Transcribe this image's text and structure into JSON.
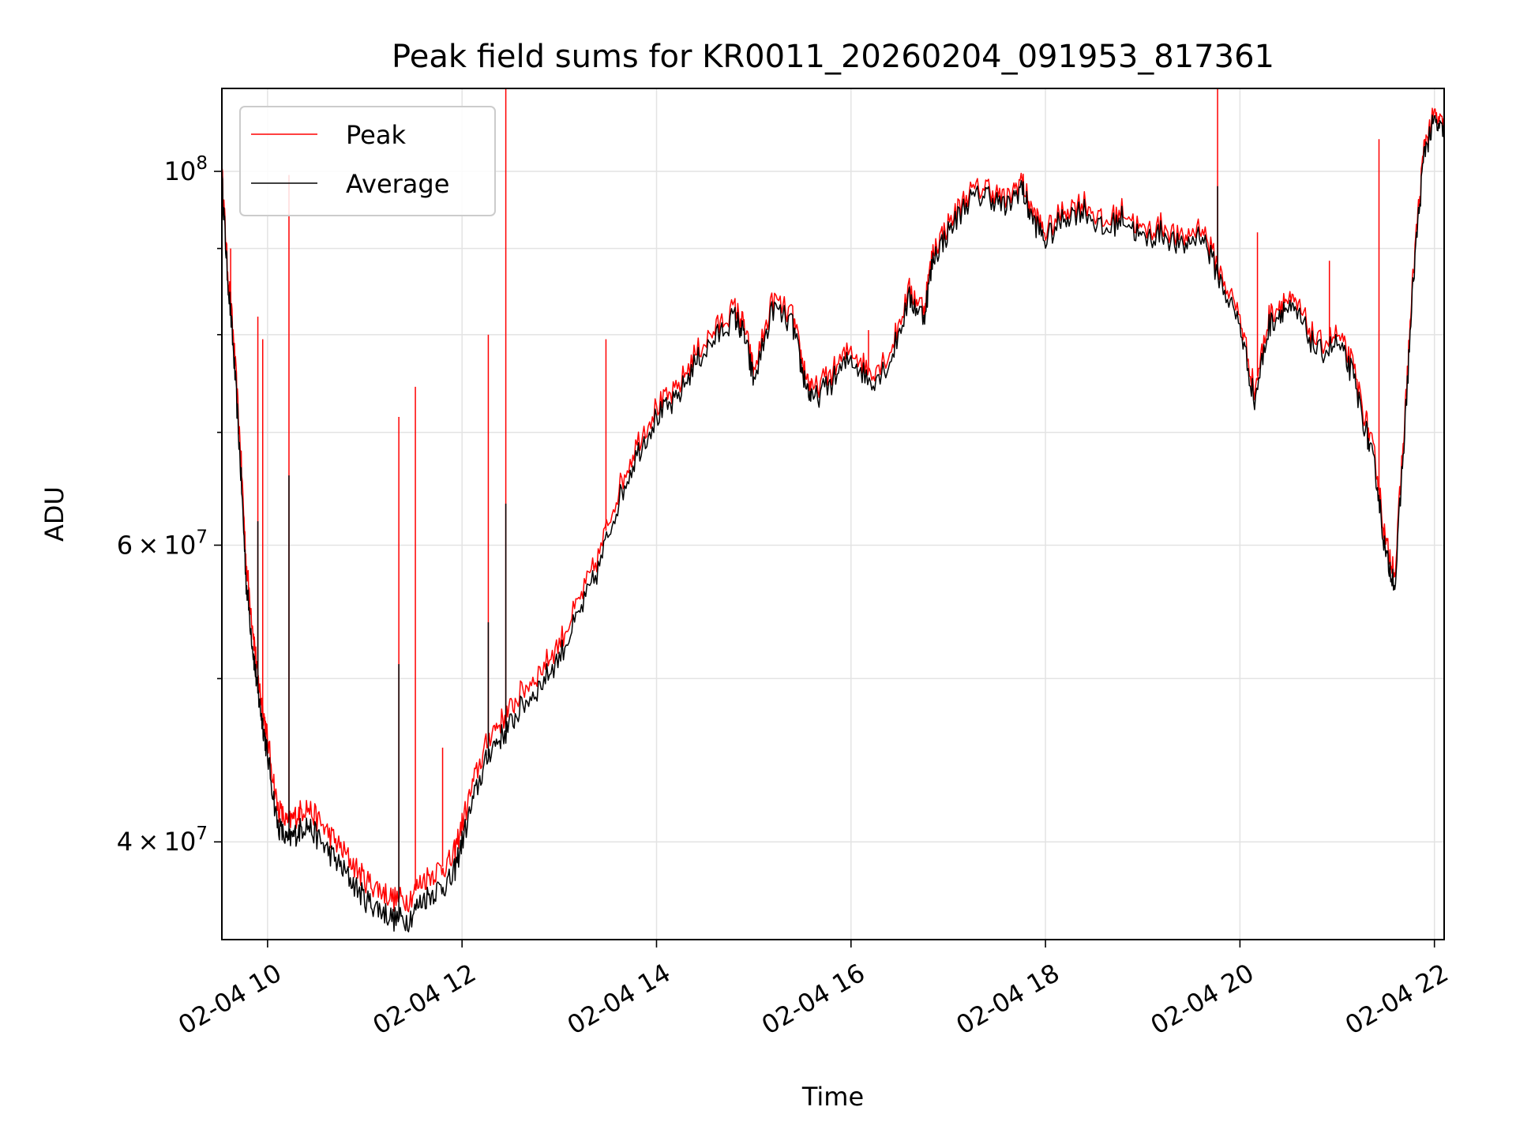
{
  "chart_data": {
    "type": "line",
    "title": "Peak field sums for KR0011_20260204_091953_817361",
    "xlabel": "Time",
    "ylabel": "ADU",
    "x_unit": "hours (time of day on 02-04)",
    "xlim": [
      9.53,
      22.1
    ],
    "ylim": [
      35000000,
      112000000
    ],
    "yscale": "log",
    "grid": true,
    "legend_position": "upper-left",
    "colors": {
      "Peak": "#ff0000",
      "Average": "#000000"
    },
    "x_ticks": [
      {
        "value": 10,
        "label": "02-04 10"
      },
      {
        "value": 12,
        "label": "02-04 12"
      },
      {
        "value": 14,
        "label": "02-04 14"
      },
      {
        "value": 16,
        "label": "02-04 16"
      },
      {
        "value": 18,
        "label": "02-04 18"
      },
      {
        "value": 20,
        "label": "02-04 20"
      },
      {
        "value": 22,
        "label": "02-04 22"
      }
    ],
    "y_ticks_major": [
      {
        "value": 40000000,
        "base": "4",
        "exp": "7"
      },
      {
        "value": 60000000,
        "base": "6",
        "exp": "7"
      },
      {
        "value": 100000000,
        "base": "10",
        "exp": "8"
      }
    ],
    "y_gridlines_minor": [
      50000000,
      70000000,
      80000000,
      90000000
    ],
    "series": [
      {
        "name": "Average",
        "x": [
          9.53,
          9.58,
          9.65,
          9.72,
          9.78,
          9.85,
          9.9,
          9.95,
          10.0,
          10.1,
          10.2,
          10.3,
          10.4,
          10.55,
          10.7,
          10.85,
          11.0,
          11.15,
          11.3,
          11.45,
          11.6,
          11.75,
          11.9,
          12.0,
          12.15,
          12.3,
          12.45,
          12.6,
          12.8,
          13.0,
          13.2,
          13.4,
          13.6,
          13.8,
          14.0,
          14.2,
          14.4,
          14.6,
          14.8,
          14.9,
          15.0,
          15.2,
          15.4,
          15.5,
          15.6,
          15.8,
          16.0,
          16.2,
          16.4,
          16.6,
          16.75,
          16.85,
          17.0,
          17.2,
          17.4,
          17.6,
          17.75,
          17.85,
          18.0,
          18.2,
          18.4,
          18.6,
          18.8,
          19.0,
          19.2,
          19.4,
          19.6,
          19.8,
          20.0,
          20.15,
          20.3,
          20.45,
          20.6,
          20.8,
          21.0,
          21.15,
          21.3,
          21.4,
          21.5,
          21.6,
          21.7,
          21.8,
          21.9,
          22.0,
          22.1
        ],
        "y": [
          99000000,
          88000000,
          78000000,
          67000000,
          57000000,
          52000000,
          49000000,
          47000000,
          45000000,
          41000000,
          40000000,
          40500000,
          41000000,
          40000000,
          39000000,
          38000000,
          37000000,
          36500000,
          36000000,
          36000000,
          37000000,
          37500000,
          38000000,
          40000000,
          43000000,
          45500000,
          46500000,
          48000000,
          49500000,
          51500000,
          54500000,
          58000000,
          63500000,
          68000000,
          71500000,
          73000000,
          77000000,
          79500000,
          82000000,
          80000000,
          75000000,
          83000000,
          81000000,
          76000000,
          73000000,
          75000000,
          77500000,
          75000000,
          77000000,
          84000000,
          82000000,
          89000000,
          92000000,
          96000000,
          97000000,
          95000000,
          98000000,
          94000000,
          91000000,
          94000000,
          95000000,
          92000000,
          94000000,
          91000000,
          92000000,
          90000000,
          92000000,
          86000000,
          81000000,
          73000000,
          81000000,
          83000000,
          82000000,
          78000000,
          79000000,
          76000000,
          70000000,
          66000000,
          59000000,
          57000000,
          71000000,
          89000000,
          103000000,
          107000000,
          105000000
        ]
      },
      {
        "name": "Peak",
        "x": [
          9.53,
          9.58,
          9.65,
          9.72,
          9.78,
          9.85,
          9.9,
          9.95,
          10.0,
          10.1,
          10.2,
          10.3,
          10.4,
          10.55,
          10.7,
          10.85,
          11.0,
          11.15,
          11.3,
          11.45,
          11.6,
          11.75,
          11.9,
          12.0,
          12.15,
          12.3,
          12.45,
          12.6,
          12.8,
          13.0,
          13.2,
          13.4,
          13.6,
          13.8,
          14.0,
          14.2,
          14.4,
          14.6,
          14.8,
          14.9,
          15.0,
          15.2,
          15.4,
          15.5,
          15.6,
          15.8,
          16.0,
          16.2,
          16.4,
          16.6,
          16.75,
          16.85,
          17.0,
          17.2,
          17.4,
          17.6,
          17.75,
          17.85,
          18.0,
          18.2,
          18.4,
          18.6,
          18.8,
          19.0,
          19.2,
          19.4,
          19.6,
          19.8,
          20.0,
          20.15,
          20.3,
          20.45,
          20.6,
          20.8,
          21.0,
          21.15,
          21.3,
          21.4,
          21.5,
          21.6,
          21.7,
          21.8,
          21.9,
          22.0,
          22.1
        ],
        "y": [
          100000000,
          89000000,
          79500000,
          68500000,
          58500000,
          53500000,
          50000000,
          48000000,
          46000000,
          42000000,
          41000000,
          41500000,
          42000000,
          41000000,
          40000000,
          39000000,
          38000000,
          37500000,
          37000000,
          37000000,
          38000000,
          38500000,
          39000000,
          41000000,
          44000000,
          46500000,
          47500000,
          49000000,
          50500000,
          52500000,
          55500000,
          59000000,
          64500000,
          69000000,
          72500000,
          74000000,
          78000000,
          80500000,
          83000000,
          81000000,
          76000000,
          84000000,
          82000000,
          77000000,
          74000000,
          76000000,
          78500000,
          76000000,
          78000000,
          85000000,
          83000000,
          90000000,
          93000000,
          97000000,
          98000000,
          96000000,
          99000000,
          95000000,
          92000000,
          95000000,
          96000000,
          93000000,
          95000000,
          92000000,
          93000000,
          91000000,
          93000000,
          87000000,
          82000000,
          74000000,
          82000000,
          84000000,
          83000000,
          79000000,
          80000000,
          77000000,
          71000000,
          67000000,
          60000000,
          58000000,
          72000000,
          90000000,
          104000000,
          108000000,
          106000000
        ]
      }
    ],
    "peak_spikes": [
      {
        "x": 9.62,
        "y": 90000000
      },
      {
        "x": 9.9,
        "y": 82000000
      },
      {
        "x": 9.95,
        "y": 79500000
      },
      {
        "x": 10.22,
        "y": 99500000
      },
      {
        "x": 11.35,
        "y": 71500000
      },
      {
        "x": 11.52,
        "y": 74500000
      },
      {
        "x": 11.8,
        "y": 45500000
      },
      {
        "x": 12.27,
        "y": 80000000
      },
      {
        "x": 12.45,
        "y": 115000000
      },
      {
        "x": 13.48,
        "y": 79500000
      },
      {
        "x": 16.18,
        "y": 80500000
      },
      {
        "x": 19.77,
        "y": 122000000
      },
      {
        "x": 20.18,
        "y": 92000000
      },
      {
        "x": 20.92,
        "y": 88500000
      },
      {
        "x": 21.43,
        "y": 104500000
      }
    ],
    "average_spikes": [
      {
        "x": 9.9,
        "y": 62000000
      },
      {
        "x": 10.22,
        "y": 66000000
      },
      {
        "x": 11.35,
        "y": 51000000
      },
      {
        "x": 12.27,
        "y": 54000000
      },
      {
        "x": 12.45,
        "y": 63500000
      },
      {
        "x": 19.77,
        "y": 98000000
      }
    ]
  }
}
